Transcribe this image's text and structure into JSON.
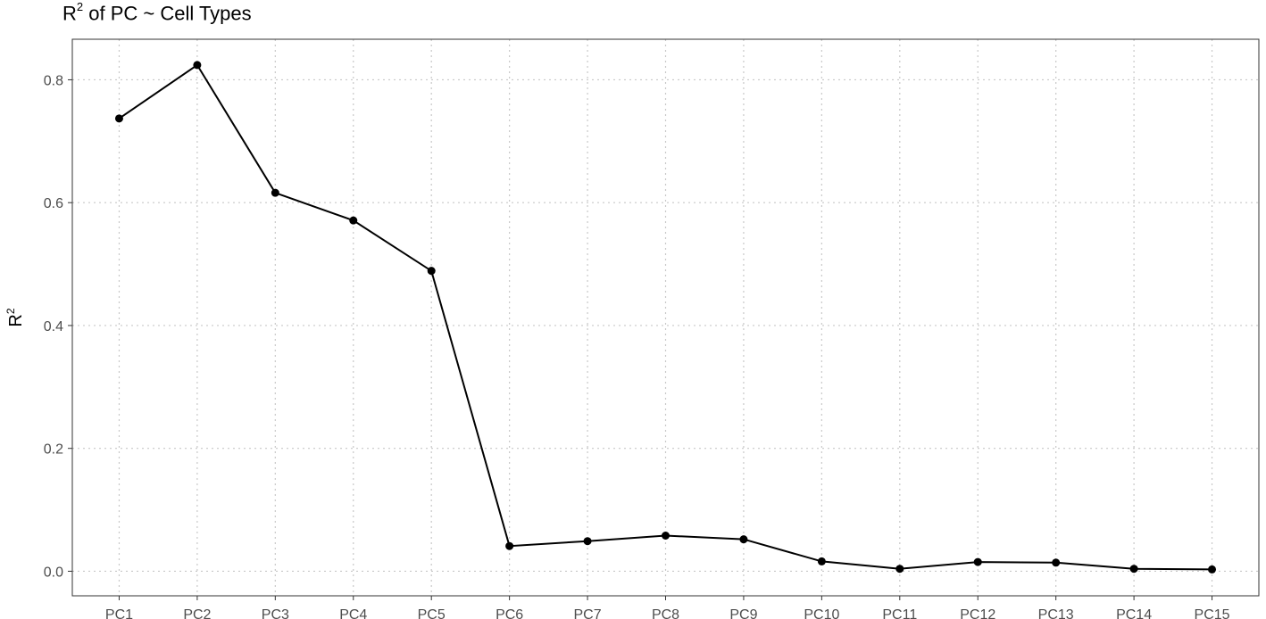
{
  "title": {
    "base": "R",
    "sup": "2",
    "rest": " of PC ~  Cell Types"
  },
  "chart_data": {
    "type": "line",
    "title": "R2 of PC ~  Cell Types",
    "xlabel": "",
    "ylabel": "R2",
    "categories": [
      "PC1",
      "PC2",
      "PC3",
      "PC4",
      "PC5",
      "PC6",
      "PC7",
      "PC8",
      "PC9",
      "PC10",
      "PC11",
      "PC12",
      "PC13",
      "PC14",
      "PC15"
    ],
    "values": [
      0.737,
      0.824,
      0.616,
      0.571,
      0.489,
      0.041,
      0.049,
      0.058,
      0.052,
      0.016,
      0.004,
      0.015,
      0.014,
      0.004,
      0.003
    ],
    "ylim": [
      -0.04,
      0.866
    ],
    "yticks": [
      0.0,
      0.2,
      0.4,
      0.6,
      0.8
    ],
    "ytick_labels": [
      "0.0",
      "0.2",
      "0.4",
      "0.6",
      "0.8"
    ],
    "grid": true,
    "grid_style": "dotted",
    "line_color": "#000000",
    "point_color": "#000000",
    "grid_color": "#c8c8c8",
    "legend": "none"
  }
}
